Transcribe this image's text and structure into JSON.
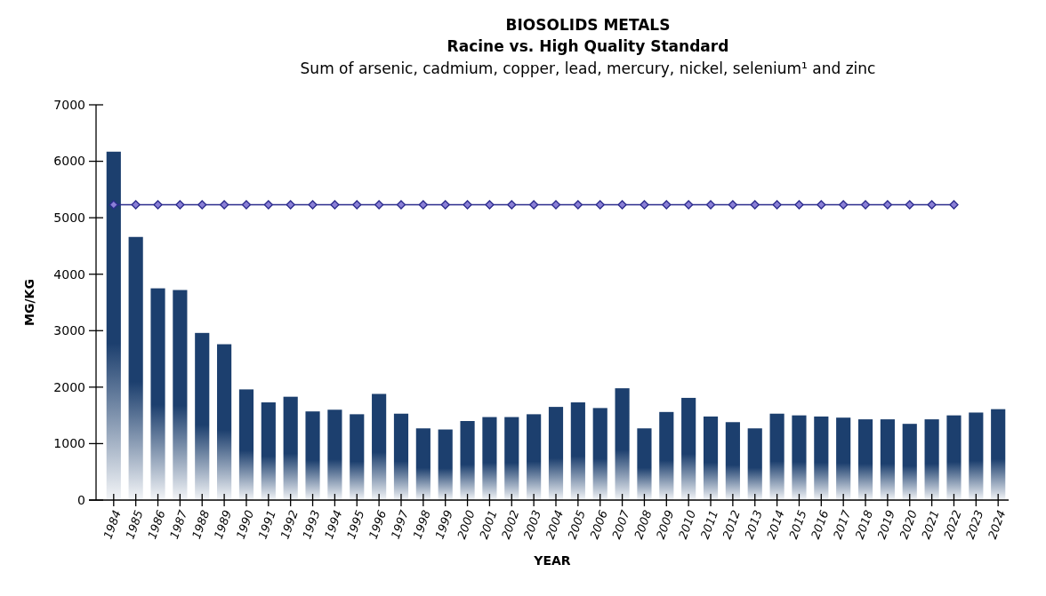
{
  "chart_data": {
    "type": "bar",
    "title": "BIOSOLIDS METALS",
    "subtitle": "Racine vs. High Quality Standard",
    "annotations": [
      "Sum of arsenic, cadmium, copper, lead, mercury, nickel, selenium¹ and zinc"
    ],
    "xlabel": "YEAR",
    "ylabel": "MG/KG",
    "categories": [
      "1984",
      "1985",
      "1986",
      "1987",
      "1988",
      "1989",
      "1990",
      "1991",
      "1992",
      "1993",
      "1994",
      "1995",
      "1996",
      "1997",
      "1998",
      "1999",
      "2000",
      "2001",
      "2002",
      "2003",
      "2004",
      "2005",
      "2006",
      "2007",
      "2008",
      "2009",
      "2010",
      "2011",
      "2012",
      "2013",
      "2014",
      "2015",
      "2016",
      "2017",
      "2018",
      "2019",
      "2020",
      "2021",
      "2022",
      "2023",
      "2024"
    ],
    "series": [
      {
        "color": "#1c3f6e",
        "values": [
          6170,
          4660,
          3750,
          3720,
          2960,
          2760,
          1960,
          1730,
          1830,
          1570,
          1600,
          1520,
          1880,
          1530,
          1270,
          1250,
          1400,
          1470,
          1470,
          1520,
          1650,
          1730,
          1630,
          1980,
          1270,
          1560,
          1810,
          1480,
          1380,
          1270,
          1530,
          1500,
          1480,
          1460,
          1430,
          1430,
          1350,
          1430,
          1500,
          1550,
          1610
        ]
      },
      {
        "type": "line",
        "color": "#2b2b8c",
        "marker": "diamond",
        "values": [
          5230,
          5230,
          5230,
          5230,
          5230,
          5230,
          5230,
          5230,
          5230,
          5230,
          5230,
          5230,
          5230,
          5230,
          5230,
          5230,
          5230,
          5230,
          5230,
          5230,
          5230,
          5230,
          5230,
          5230,
          5230,
          5230,
          5230,
          5230,
          5230,
          5230,
          5230,
          5230,
          5230,
          5230,
          5230,
          5230,
          5230,
          5230,
          5230,
          null,
          null
        ]
      }
    ],
    "ylim": [
      0,
      7000
    ],
    "yticks": [
      0,
      1000,
      2000,
      3000,
      4000,
      5000,
      6000,
      7000
    ],
    "grid": false
  }
}
